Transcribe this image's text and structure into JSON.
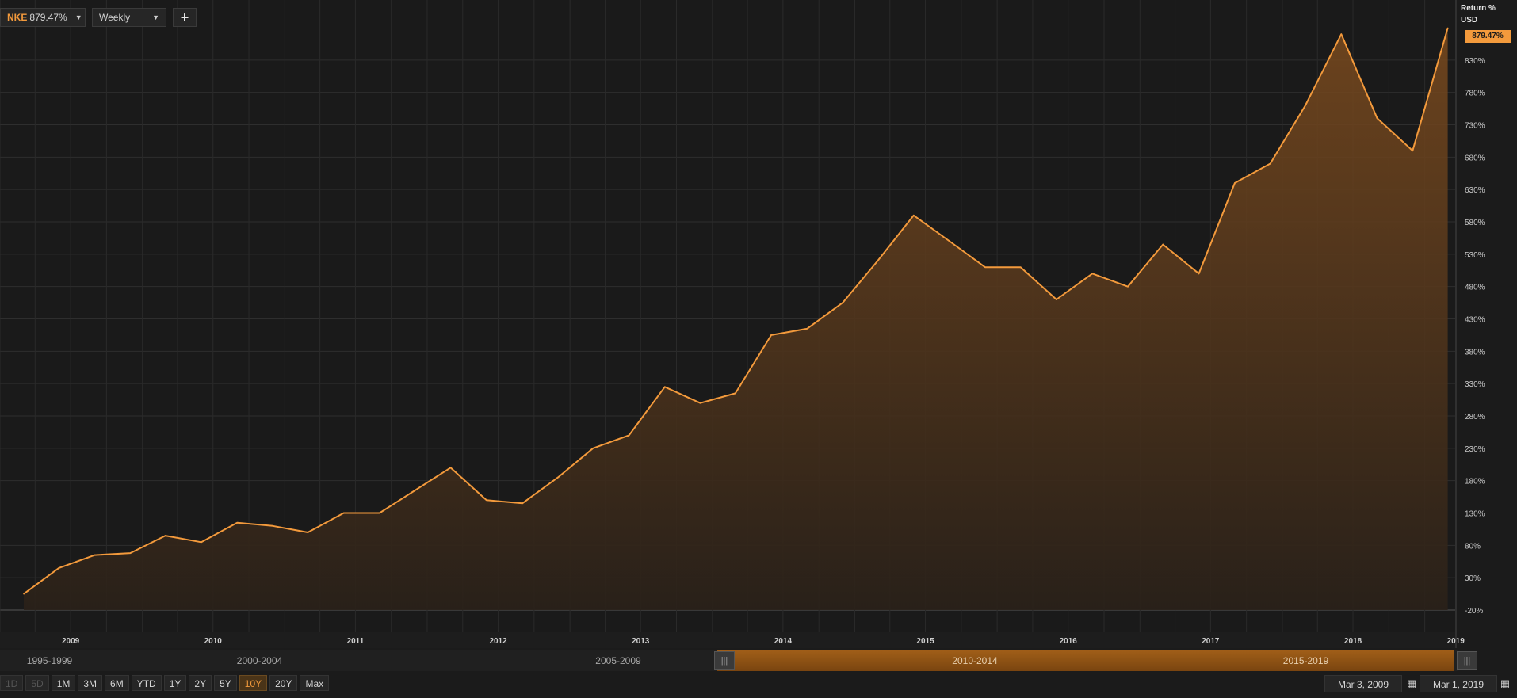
{
  "toolbar": {
    "ticker": "NKE",
    "ticker_value": "879.47%",
    "interval": "Weekly",
    "add_label": "+"
  },
  "axis": {
    "unit_title": "Return %",
    "currency": "USD",
    "last_value": "879.47%"
  },
  "chart_data": {
    "type": "area",
    "series": [
      {
        "name": "NKE",
        "x": [
          "2009-03-03",
          "2009-06-01",
          "2009-09-01",
          "2009-12-01",
          "2010-03-01",
          "2010-06-01",
          "2010-09-01",
          "2010-12-01",
          "2011-03-01",
          "2011-06-01",
          "2011-09-01",
          "2011-12-01",
          "2012-03-01",
          "2012-06-01",
          "2012-09-01",
          "2012-12-01",
          "2013-03-01",
          "2013-06-01",
          "2013-09-01",
          "2013-12-01",
          "2014-03-01",
          "2014-06-01",
          "2014-09-01",
          "2014-12-01",
          "2015-03-01",
          "2015-06-01",
          "2015-09-01",
          "2015-12-01",
          "2016-03-01",
          "2016-06-01",
          "2016-09-01",
          "2016-12-01",
          "2017-03-01",
          "2017-06-01",
          "2017-09-01",
          "2017-12-01",
          "2018-03-01",
          "2018-06-01",
          "2018-09-01",
          "2018-12-01",
          "2019-03-01"
        ],
        "values": [
          5,
          45,
          65,
          68,
          95,
          85,
          115,
          110,
          100,
          130,
          130,
          165,
          200,
          150,
          145,
          185,
          230,
          250,
          325,
          300,
          315,
          405,
          415,
          455,
          520,
          590,
          550,
          510,
          510,
          460,
          500,
          480,
          545,
          500,
          640,
          670,
          760,
          870,
          740,
          690,
          879.47
        ]
      }
    ],
    "ylim": [
      -20,
      880
    ],
    "yticks": [
      -20,
      30,
      80,
      130,
      180,
      230,
      280,
      330,
      380,
      430,
      480,
      530,
      580,
      630,
      680,
      730,
      780,
      830
    ],
    "ytick_labels": [
      "-20%",
      "30%",
      "80%",
      "130%",
      "180%",
      "230%",
      "280%",
      "330%",
      "380%",
      "430%",
      "480%",
      "530%",
      "580%",
      "630%",
      "680%",
      "730%",
      "780%",
      "830%"
    ],
    "xticks": [
      "2009",
      "2010",
      "2011",
      "2012",
      "2013",
      "2014",
      "2015",
      "2016",
      "2017",
      "2018",
      "2019"
    ],
    "grid": true,
    "line_color": "#f39a3c"
  },
  "navigator": {
    "periods": [
      "1995-1999",
      "2000-2004",
      "2005-2009",
      "2010-2014",
      "2015-2019"
    ]
  },
  "range_buttons": [
    "1D",
    "5D",
    "1M",
    "3M",
    "6M",
    "YTD",
    "1Y",
    "2Y",
    "5Y",
    "10Y",
    "20Y",
    "Max"
  ],
  "active_range": "10Y",
  "date_range": {
    "start": "Mar 3, 2009",
    "end": "Mar 1, 2019"
  }
}
